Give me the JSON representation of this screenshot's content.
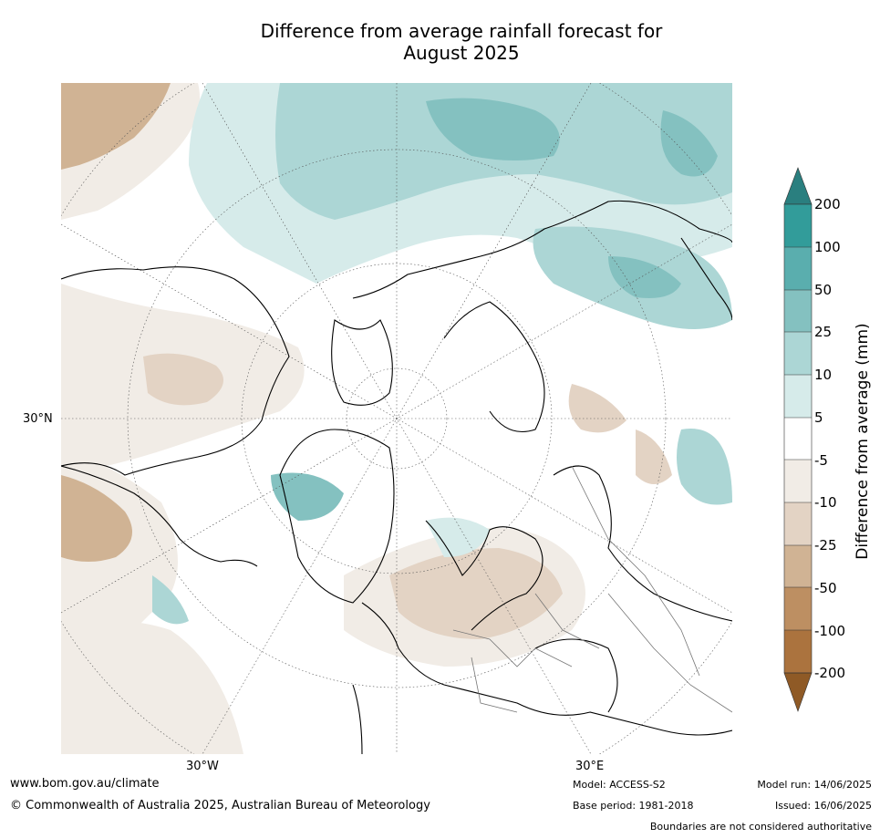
{
  "title_line1": "Difference from average rainfall forecast for",
  "title_line2": "August 2025",
  "map": {
    "projection": "north-polar-stereographic",
    "lat_label": "30°N",
    "lon_labels": [
      "30°W",
      "30°E"
    ]
  },
  "colorbar": {
    "title": "Difference from average (mm)",
    "ticks": [
      "200",
      "100",
      "50",
      "25",
      "10",
      "5",
      "-5",
      "-10",
      "-25",
      "-50",
      "-100",
      "-200"
    ],
    "colors": {
      "wet_200_plus": "#2a7f7f",
      "wet_100_200": "#329c9a",
      "wet_50_100": "#5aaeae",
      "wet_25_50": "#84c1c0",
      "wet_10_25": "#acd6d5",
      "wet_5_10": "#d6ebea",
      "neutral": "#ffffff",
      "dry_5_10": "#f1ece6",
      "dry_10_25": "#e3d3c4",
      "dry_25_50": "#d0b394",
      "dry_50_100": "#bd8f62",
      "dry_100_200": "#ab733e",
      "dry_200_plus": "#8f5a26"
    }
  },
  "footer": {
    "url": "www.bom.gov.au/climate",
    "copyright": "© Commonwealth of Australia 2025, Australian Bureau of Meteorology",
    "model": "Model: ACCESS-S2",
    "base_period": "Base period: 1981-2018",
    "model_run": "Model run: 14/06/2025",
    "issued": "Issued: 16/06/2025",
    "disclaimer": "Boundaries are not considered authoritative"
  }
}
